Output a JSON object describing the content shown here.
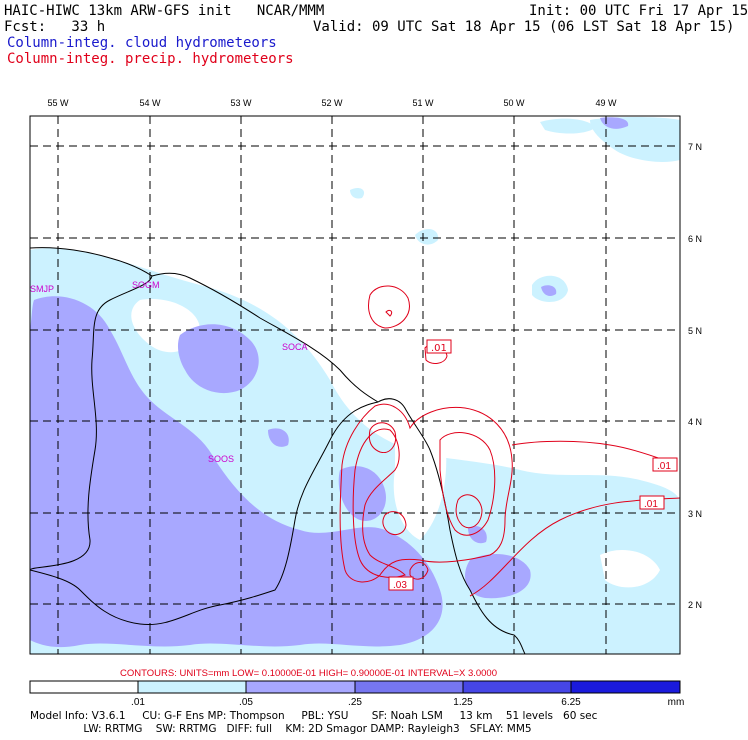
{
  "header": {
    "title": "HAIC-HIWC 13km ARW-GFS init   NCAR/MMM",
    "init": "Init: 00 UTC Fri 17 Apr 15",
    "fcst": "Fcst:   33 h",
    "valid": "Valid: 09 UTC Sat 18 Apr 15 (06 LST Sat 18 Apr 15)",
    "field1": "Column-integ. cloud hydrometeors",
    "field2": "Column-integ. precip. hydrometeors"
  },
  "longitudes": [
    "55 W",
    "54 W",
    "53 W",
    "52 W",
    "51 W",
    "50 W",
    "49 W"
  ],
  "latitudes": [
    "7 N",
    "6 N",
    "5 N",
    "4 N",
    "3 N",
    "2 N"
  ],
  "stations": [
    "SMJP",
    "SOGM",
    "SOCA",
    "SOOS"
  ],
  "contour_labels": [
    ".01",
    ".01",
    ".01",
    ".03"
  ],
  "contours_info": "CONTOURS:  UNITS=mm  LOW= 0.10000E-01  HIGH= 0.90000E-01  INTERVAL=X  3.0000",
  "colorbar": {
    "ticks": [
      ".01",
      ".05",
      ".25",
      "1.25",
      "6.25"
    ],
    "unit": "mm",
    "colors": [
      "#ffffff",
      "#ccf2ff",
      "#a8a8ff",
      "#7676f0",
      "#4646e6",
      "#1a1adc"
    ]
  },
  "footer": {
    "line1": "Model Info: V3.6.1     CU: G-F Ens MP: Thompson     PBL: YSU       SF: Noah LSM     13 km    51 levels   60 sec",
    "line2": "                LW: RRTMG    SW: RRTMG   DIFF: full    KM: 2D Smagor DAMP: Rayleigh3   SFLAY: MM5"
  },
  "colors": {
    "cloud_light": "#ccf2ff",
    "cloud_medium": "#a8a8ff",
    "precip_contour": "#e0001a",
    "station": "#cc00cc"
  }
}
